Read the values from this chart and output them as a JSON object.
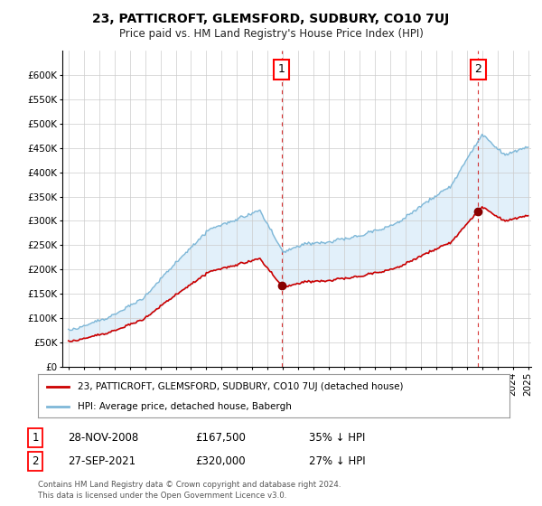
{
  "title": "23, PATTICROFT, GLEMSFORD, SUDBURY, CO10 7UJ",
  "subtitle": "Price paid vs. HM Land Registry's House Price Index (HPI)",
  "ylim": [
    0,
    650000
  ],
  "yticks": [
    0,
    50000,
    100000,
    150000,
    200000,
    250000,
    300000,
    350000,
    400000,
    450000,
    500000,
    550000,
    600000
  ],
  "ytick_labels": [
    "£0",
    "£50K",
    "£100K",
    "£150K",
    "£200K",
    "£250K",
    "£300K",
    "£350K",
    "£400K",
    "£450K",
    "£500K",
    "£550K",
    "£600K"
  ],
  "hpi_color": "#7fb8d8",
  "hpi_fill_color": "#d6eaf8",
  "sale_color": "#cc0000",
  "vline_color": "#cc0000",
  "sale_dates": [
    2008.91,
    2021.74
  ],
  "sale_prices": [
    167500,
    320000
  ],
  "annotation_labels": [
    "1",
    "2"
  ],
  "legend_sale_label": "23, PATTICROFT, GLEMSFORD, SUDBURY, CO10 7UJ (detached house)",
  "legend_hpi_label": "HPI: Average price, detached house, Babergh",
  "note1_label": "1",
  "note1_date": "28-NOV-2008",
  "note1_price": "£167,500",
  "note1_pct": "35% ↓ HPI",
  "note2_label": "2",
  "note2_date": "27-SEP-2021",
  "note2_price": "£320,000",
  "note2_pct": "27% ↓ HPI",
  "footer": "Contains HM Land Registry data © Crown copyright and database right 2024.\nThis data is licensed under the Open Government Licence v3.0.",
  "background_color": "#ffffff",
  "grid_color": "#cccccc"
}
